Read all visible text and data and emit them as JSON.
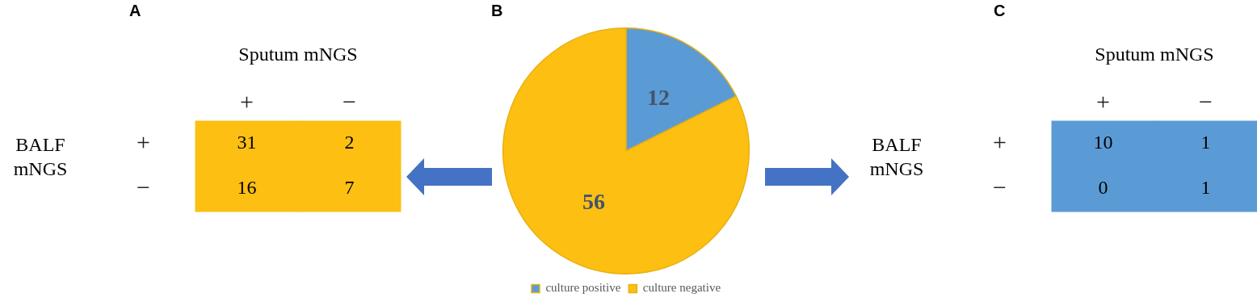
{
  "chart_data": [
    {
      "type": "heatmap",
      "title": "A",
      "xlabel": "Sputum mNGS",
      "ylabel": "BALF mNGS",
      "categories": [
        "+",
        "−"
      ],
      "y_categories": [
        "+",
        "−"
      ],
      "cells": [
        [
          31,
          2
        ],
        [
          16,
          7
        ]
      ],
      "color": "#fcbf12",
      "data_labels": true
    },
    {
      "type": "pie",
      "title": "B",
      "categories": [
        "culture positive",
        "culture negative"
      ],
      "values": [
        12,
        56
      ],
      "colors": [
        "#5b9bd5",
        "#fcbf12"
      ],
      "data_labels": true,
      "legend": "bottom"
    },
    {
      "type": "heatmap",
      "title": "C",
      "xlabel": "Sputum mNGS",
      "ylabel": "BALF mNGS",
      "categories": [
        "+",
        "−"
      ],
      "y_categories": [
        "+",
        "−"
      ],
      "cells": [
        [
          10,
          1
        ],
        [
          0,
          1
        ]
      ],
      "color": "#5b9bd5",
      "data_labels": true
    }
  ]
}
